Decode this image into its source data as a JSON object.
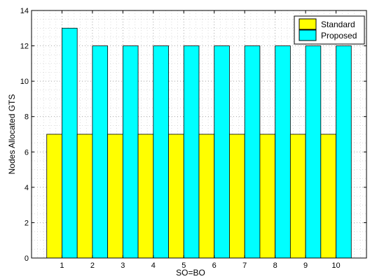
{
  "chart_data": {
    "type": "bar",
    "title": "",
    "xlabel": "SO=BO",
    "ylabel": "Nodes Allocated GTS",
    "categories": [
      "1",
      "2",
      "3",
      "4",
      "5",
      "6",
      "7",
      "8",
      "9",
      "10"
    ],
    "series": [
      {
        "name": "Standard",
        "values": [
          7,
          7,
          7,
          7,
          7,
          7,
          7,
          7,
          7,
          7
        ],
        "color": "#ffff00"
      },
      {
        "name": "Proposed",
        "values": [
          13,
          12,
          12,
          12,
          12,
          12,
          12,
          12,
          12,
          12
        ],
        "color": "#00ffff"
      }
    ],
    "ylim": [
      0,
      14
    ],
    "xlim": [
      0,
      11
    ],
    "yticks": [
      "0",
      "2",
      "4",
      "6",
      "8",
      "10",
      "12",
      "14"
    ],
    "grid": true,
    "legend_position": "top-right"
  }
}
